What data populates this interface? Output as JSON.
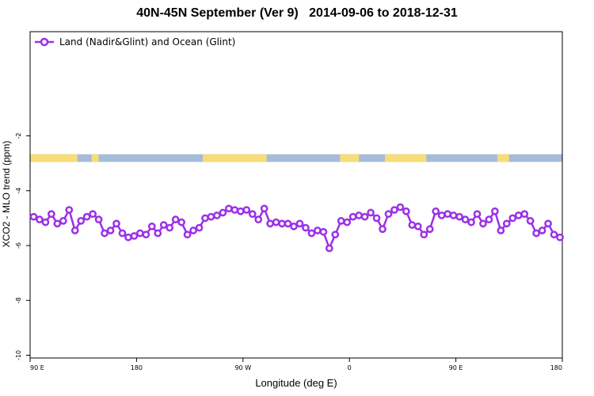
{
  "chart_data": {
    "type": "line",
    "title": "40N-45N September (Ver 9)   2014-09-06 to 2018-12-31",
    "xlabel": "Longitude (deg E)",
    "ylabel": "XCO2 - MLO trend (ppm)",
    "x_ticks": [
      {
        "value": 0,
        "label": "90 E"
      },
      {
        "value": 90,
        "label": "180"
      },
      {
        "value": 180,
        "label": "90 W"
      },
      {
        "value": 270,
        "label": "0"
      },
      {
        "value": 360,
        "label": "90 E"
      },
      {
        "value": 450,
        "label": "180"
      }
    ],
    "y_ticks": [
      -2,
      -4,
      -6,
      -8,
      -10
    ],
    "xlim": [
      0,
      450
    ],
    "ylim": [
      -10.1,
      1.8
    ],
    "legend_position": "top-left",
    "series": [
      {
        "name": "Land (Nadir&Glint) and Ocean (Glint)",
        "color": "#9b30e8",
        "x": [
          3,
          8,
          13,
          18,
          23,
          28,
          33,
          38,
          43,
          48,
          53,
          58,
          63,
          68,
          73,
          78,
          83,
          88,
          93,
          98,
          103,
          108,
          113,
          118,
          123,
          128,
          133,
          138,
          143,
          148,
          153,
          158,
          163,
          168,
          173,
          178,
          183,
          188,
          193,
          198,
          203,
          208,
          213,
          218,
          223,
          228,
          233,
          238,
          243,
          248,
          253,
          258,
          263,
          268,
          273,
          278,
          283,
          288,
          293,
          298,
          303,
          308,
          313,
          318,
          323,
          328,
          333,
          338,
          343,
          348,
          353,
          358,
          363,
          368,
          373,
          378,
          383,
          388,
          393,
          398,
          403,
          408,
          413,
          418,
          423,
          428,
          433,
          438,
          443,
          448
        ],
        "values": [
          -4.95,
          -5.05,
          -5.15,
          -4.85,
          -5.2,
          -5.1,
          -4.7,
          -5.45,
          -5.1,
          -4.95,
          -4.85,
          -5.05,
          -5.55,
          -5.45,
          -5.2,
          -5.55,
          -5.7,
          -5.65,
          -5.55,
          -5.6,
          -5.3,
          -5.55,
          -5.25,
          -5.35,
          -5.05,
          -5.15,
          -5.6,
          -5.45,
          -5.35,
          -5.0,
          -4.95,
          -4.9,
          -4.8,
          -4.65,
          -4.7,
          -4.75,
          -4.7,
          -4.85,
          -5.05,
          -4.65,
          -5.2,
          -5.15,
          -5.2,
          -5.2,
          -5.3,
          -5.2,
          -5.35,
          -5.55,
          -5.45,
          -5.5,
          -6.1,
          -5.6,
          -5.1,
          -5.15,
          -4.95,
          -4.9,
          -4.95,
          -4.8,
          -5.0,
          -5.4,
          -4.85,
          -4.7,
          -4.6,
          -4.75,
          -5.25,
          -5.3,
          -5.6,
          -5.4,
          -4.75,
          -4.9,
          -4.85,
          -4.9,
          -4.95,
          -5.05,
          -5.15,
          -4.85,
          -5.2,
          -5.05,
          -4.75,
          -5.45,
          -5.2,
          -5.0,
          -4.9,
          -4.85,
          -5.1,
          -5.55,
          -5.45,
          -5.2,
          -5.6,
          -5.7
        ]
      }
    ],
    "land_ocean_bar": {
      "y_top": -2.67,
      "y_bottom": -2.95,
      "ocean_color": "#a4bcd8",
      "land_color": "#f7dc78",
      "land_ranges": [
        [
          0,
          40
        ],
        [
          52,
          58
        ],
        [
          146,
          200
        ],
        [
          262,
          278
        ],
        [
          300,
          335
        ],
        [
          395,
          405
        ]
      ]
    }
  }
}
